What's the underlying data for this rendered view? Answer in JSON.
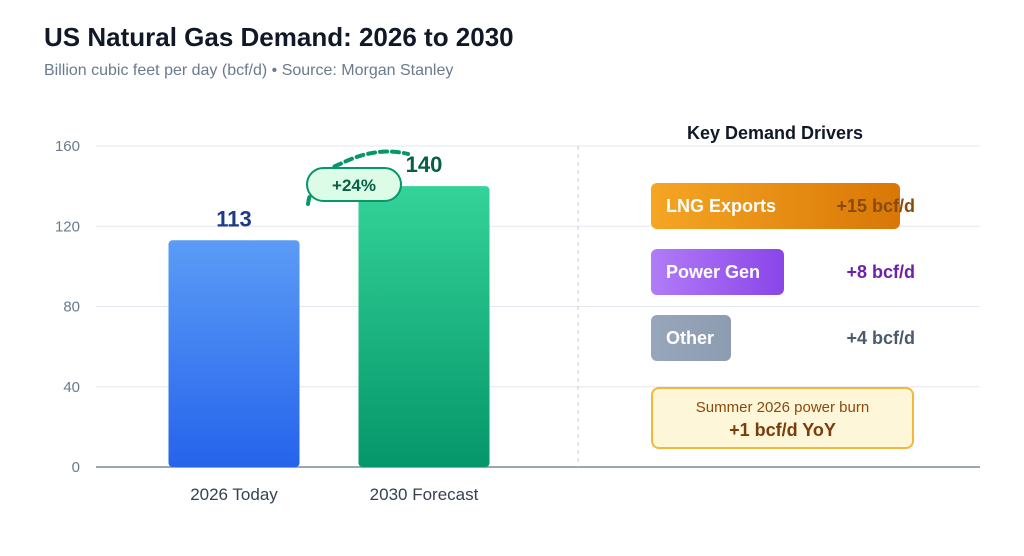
{
  "header": {
    "title": "US Natural Gas Demand: 2026 to 2030",
    "subtitle": "Billion cubic feet per day (bcf/d) • Source: Morgan Stanley"
  },
  "chart_data": {
    "type": "bar",
    "title": "US Natural Gas Demand: 2026 to 2030",
    "ylabel": "bcf/d",
    "xlabel": "",
    "ylim": [
      0,
      160
    ],
    "yticks": [
      0,
      40,
      80,
      120,
      160
    ],
    "grid": true,
    "categories": [
      "2026 Today",
      "2030 Forecast"
    ],
    "values": [
      113,
      140
    ],
    "data_labels": [
      "113",
      "140"
    ],
    "bar_colors": [
      [
        "#5b9cf6",
        "#2563eb"
      ],
      [
        "#34d399",
        "#059669"
      ]
    ],
    "label_colors": [
      "#1e3a8a",
      "#065f46"
    ],
    "annotation": {
      "text": "+24%",
      "color": "#059669"
    }
  },
  "drivers": {
    "title": "Key Demand Drivers",
    "items": [
      {
        "label": "LNG Exports",
        "value": "+15 bcf/d",
        "amount": 15,
        "color_start": "#f5a623",
        "color_end": "#d97706",
        "value_color": "#8a4a0c"
      },
      {
        "label": "Power Gen",
        "value": "+8 bcf/d",
        "amount": 8,
        "color_start": "#b07cf8",
        "color_end": "#8b45e8",
        "value_color": "#6b21a8"
      },
      {
        "label": "Other",
        "value": "+4 bcf/d",
        "amount": 4,
        "color_start": "#97a6ba",
        "color_end": "#8d9cb0",
        "value_color": "#4b5a70"
      }
    ]
  },
  "note": {
    "line1": "Summer 2026 power burn",
    "line2": "+1 bcf/d YoY"
  }
}
